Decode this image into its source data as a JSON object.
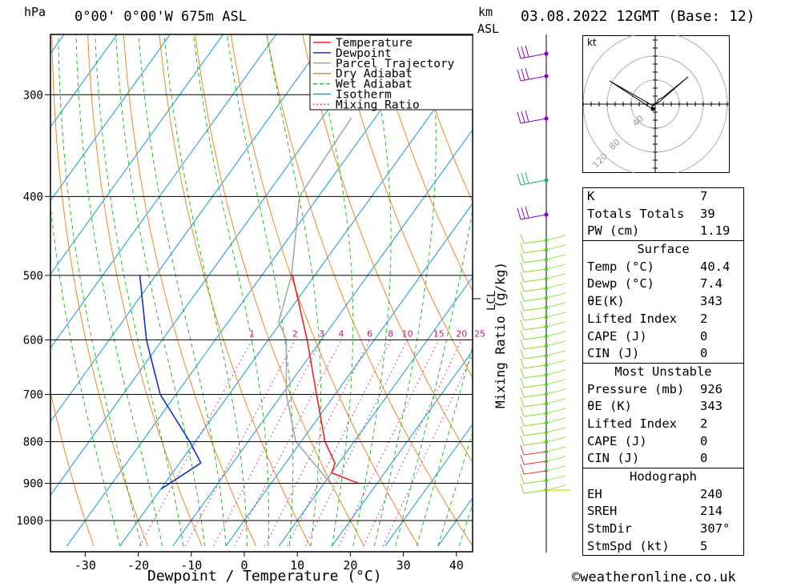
{
  "header": {
    "location": "0°00' 0°00'W 675m ASL",
    "pressure_unit": "hPa",
    "height_unit_km": "km",
    "height_unit_asl": "ASL",
    "datetime": "03.08.2022 12GMT (Base: 12)"
  },
  "footer": {
    "copyright": "©weatheronline.co.uk"
  },
  "legend": [
    {
      "label": "Temperature",
      "color": "#ee2222",
      "dash": "solid"
    },
    {
      "label": "Dewpoint",
      "color": "#1133cc",
      "dash": "solid"
    },
    {
      "label": "Parcel Trajectory",
      "color": "#a8a8a8",
      "dash": "solid"
    },
    {
      "label": "Dry Adiabat",
      "color": "#ee8822",
      "dash": "solid"
    },
    {
      "label": "Wet Adiabat",
      "color": "#22bb22",
      "dash": "dashed"
    },
    {
      "label": "Isotherm",
      "color": "#1199dd",
      "dash": "solid"
    },
    {
      "label": "Mixing Ratio",
      "color": "#cc1188",
      "dash": "dotted"
    }
  ],
  "chart_data": {
    "type": "line",
    "title": "",
    "xlabel": "Dewpoint / Temperature (°C)",
    "ylabel": "hPa",
    "pressure_levels": [
      300,
      400,
      500,
      600,
      700,
      800,
      900,
      1000
    ],
    "x_ticks": [
      -30,
      -20,
      -10,
      0,
      10,
      20,
      30,
      40
    ],
    "right_axis_label": "Mixing Ratio (g/kg)",
    "right_axis_tick": "LCL",
    "mixing_ratio_labels": [
      "1",
      "2",
      "3",
      "4",
      "6",
      "8",
      "10",
      "15",
      "20",
      "25"
    ],
    "series": [
      {
        "name": "Temperature",
        "color": "#ee2222",
        "points": [
          [
            -24.2,
            500
          ],
          [
            -12.7,
            600
          ],
          [
            -3.5,
            700
          ],
          [
            4.5,
            800
          ],
          [
            9.3,
            850
          ],
          [
            10.0,
            874
          ],
          [
            16.5,
            900
          ]
        ]
      },
      {
        "name": "Dewpoint",
        "color": "#1133cc",
        "points": [
          [
            -53,
            500
          ],
          [
            -43,
            600
          ],
          [
            -33,
            700
          ],
          [
            -21,
            800
          ],
          [
            -16,
            850
          ],
          [
            -20,
            915
          ]
        ]
      },
      {
        "name": "Parcel Trajectory",
        "color": "#a8a8a8",
        "points": [
          [
            -34.5,
            320
          ],
          [
            -33.6,
            400
          ],
          [
            -24.4,
            500
          ],
          [
            -20.5,
            570
          ],
          [
            -16.6,
            600
          ],
          [
            -9.2,
            700
          ],
          [
            -1.0,
            800
          ],
          [
            11.2,
            900
          ]
        ]
      }
    ],
    "hodograph": {
      "unit": "kt",
      "ring_labels": [
        "40",
        "80",
        "120"
      ]
    }
  },
  "params": {
    "basic": [
      {
        "label": "K",
        "value": "7"
      },
      {
        "label": "Totals Totals",
        "value": "39"
      },
      {
        "label": "PW (cm)",
        "value": "1.19"
      }
    ],
    "surface_title": "Surface",
    "surface": [
      {
        "label": "Temp (°C)",
        "value": "40.4"
      },
      {
        "label": "Dewp (°C)",
        "value": "7.4"
      },
      {
        "label": "θE(K)",
        "value": "343"
      },
      {
        "label": "Lifted Index",
        "value": "2"
      },
      {
        "label": "CAPE (J)",
        "value": "0"
      },
      {
        "label": "CIN (J)",
        "value": "0"
      }
    ],
    "mu_title": "Most Unstable",
    "mu": [
      {
        "label": "Pressure (mb)",
        "value": "926"
      },
      {
        "label": "θE (K)",
        "value": "343"
      },
      {
        "label": "Lifted Index",
        "value": "2"
      },
      {
        "label": "CAPE (J)",
        "value": "0"
      },
      {
        "label": "CIN (J)",
        "value": "0"
      }
    ],
    "hodo_title": "Hodograph",
    "hodo": [
      {
        "label": "EH",
        "value": "240"
      },
      {
        "label": "SREH",
        "value": "214"
      },
      {
        "label": "StmDir",
        "value": "307°"
      },
      {
        "label": "StmSpd (kt)",
        "value": "5"
      }
    ]
  }
}
